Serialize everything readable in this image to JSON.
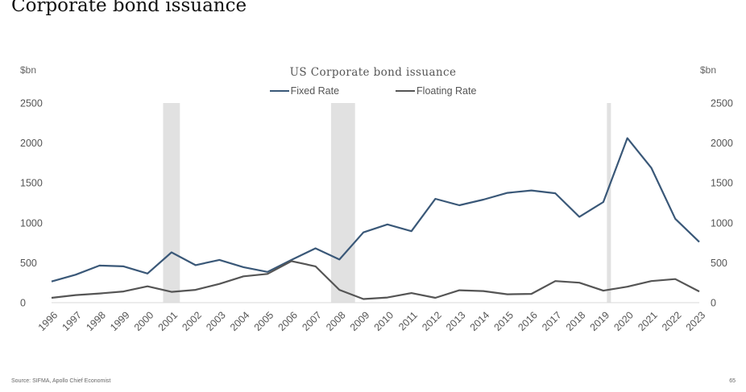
{
  "page": {
    "title": "Corporate bond issuance",
    "source": "Source: SIFMA, Apollo Chief Economist",
    "page_number": "65"
  },
  "chart_data": {
    "type": "line",
    "title": "US Corporate bond issuance",
    "ylabel_left": "$bn",
    "ylabel_right": "$bn",
    "xlabel": "",
    "ylim": [
      0,
      2500
    ],
    "yticks": [
      0,
      500,
      1000,
      1500,
      2000,
      2500
    ],
    "legend_position": "top-center",
    "grid": false,
    "categories": [
      "1996",
      "1997",
      "1998",
      "1999",
      "2000",
      "2001",
      "2002",
      "2003",
      "2004",
      "2005",
      "2006",
      "2007",
      "2008",
      "2009",
      "2010",
      "2011",
      "2012",
      "2013",
      "2014",
      "2015",
      "2016",
      "2017",
      "2018",
      "2019",
      "2020",
      "2021",
      "2022",
      "2023"
    ],
    "series": [
      {
        "name": "Fixed Rate",
        "color": "#3a5878",
        "values": [
          265,
          350,
          465,
          455,
          365,
          630,
          470,
          535,
          445,
          385,
          535,
          680,
          540,
          880,
          980,
          895,
          1300,
          1220,
          1290,
          1375,
          1405,
          1370,
          1075,
          1260,
          2060,
          1690,
          1050,
          760
        ]
      },
      {
        "name": "Floating Rate",
        "color": "#555555",
        "values": [
          60,
          95,
          115,
          140,
          205,
          135,
          160,
          235,
          330,
          360,
          520,
          455,
          160,
          45,
          65,
          120,
          60,
          155,
          145,
          105,
          110,
          270,
          250,
          150,
          200,
          270,
          295,
          140
        ]
      }
    ],
    "shaded_periods": [
      {
        "from": "2000",
        "to": "2001"
      },
      {
        "from": "2007",
        "to": "2008"
      },
      {
        "from": "2019",
        "to": "2019"
      }
    ],
    "shade_color": "#e1e1e1"
  }
}
